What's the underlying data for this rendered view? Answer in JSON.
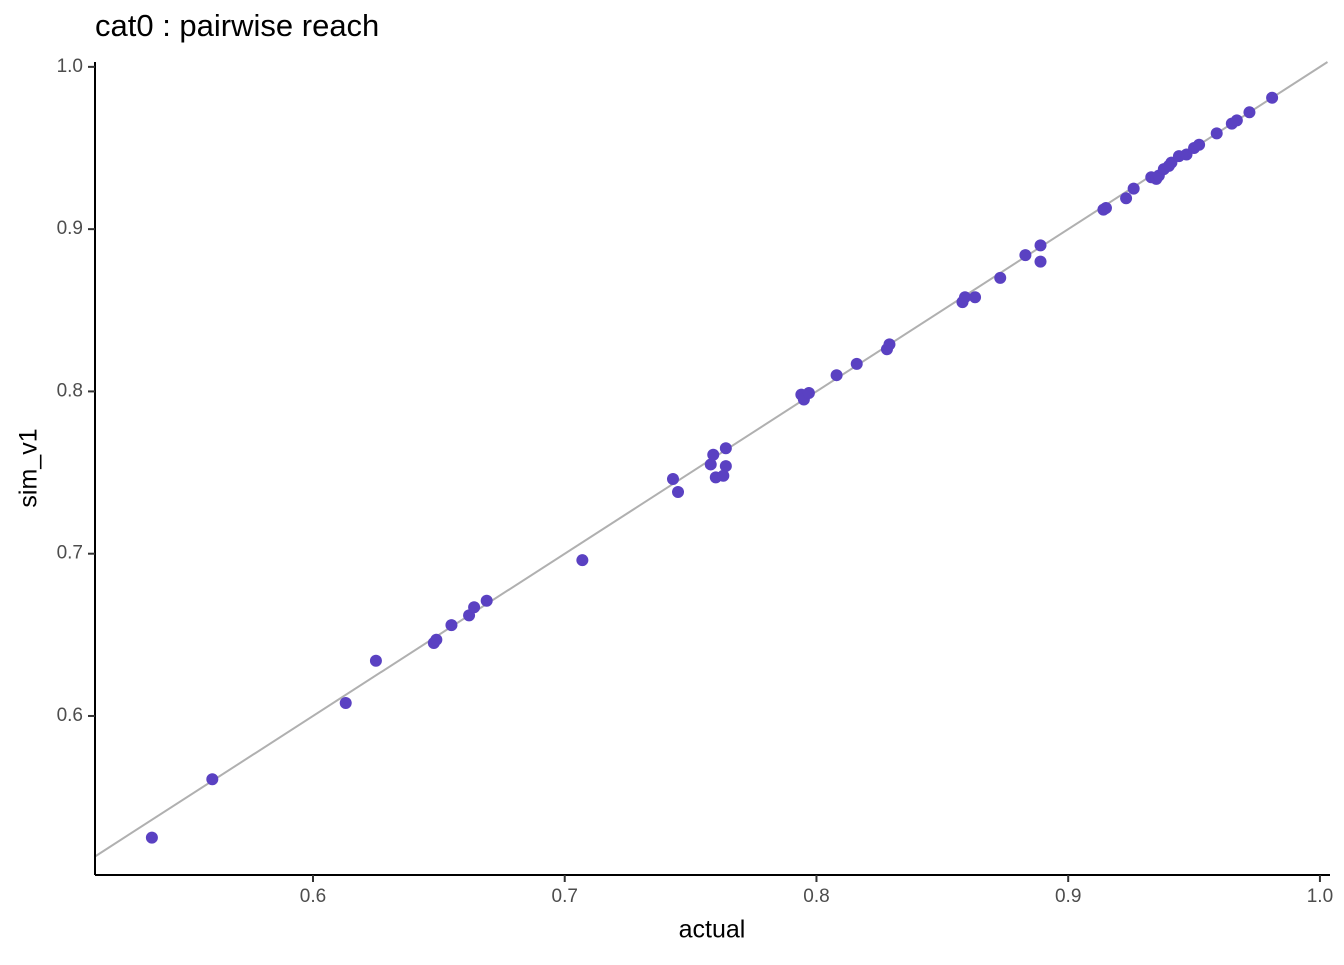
{
  "chart_data": {
    "type": "scatter",
    "title": "cat0 : pairwise reach",
    "x_label": "actual",
    "y_label": "sim_v1",
    "color": "#5a41c2",
    "identity_line": true,
    "identity_color": "#b0b0b0",
    "xlim": [
      0.5134,
      1.004
    ],
    "ylim": [
      0.502,
      1.003
    ],
    "xticks": [
      0.6,
      0.7,
      0.8,
      0.9,
      {
        "value": 1.0,
        "label": "1.0"
      }
    ],
    "yticks": [
      0.6,
      0.7,
      0.8,
      0.9,
      {
        "value": 1.0,
        "label": "1.0"
      }
    ],
    "x": [
      0.536,
      0.56,
      0.613,
      0.625,
      0.648,
      0.649,
      0.655,
      0.662,
      0.664,
      0.669,
      0.707,
      0.743,
      0.745,
      0.758,
      0.759,
      0.76,
      0.763,
      0.764,
      0.764,
      0.794,
      0.795,
      0.797,
      0.808,
      0.816,
      0.828,
      0.829,
      0.858,
      0.859,
      0.863,
      0.873,
      0.883,
      0.889,
      0.889,
      0.914,
      0.915,
      0.923,
      0.926,
      0.933,
      0.935,
      0.936,
      0.938,
      0.94,
      0.941,
      0.944,
      0.947,
      0.95,
      0.952,
      0.959,
      0.965,
      0.967,
      0.972,
      0.981
    ],
    "values": [
      0.525,
      0.561,
      0.608,
      0.634,
      0.645,
      0.647,
      0.656,
      0.662,
      0.667,
      0.671,
      0.696,
      0.746,
      0.738,
      0.755,
      0.761,
      0.747,
      0.748,
      0.754,
      0.765,
      0.798,
      0.795,
      0.799,
      0.81,
      0.817,
      0.826,
      0.829,
      0.855,
      0.858,
      0.858,
      0.87,
      0.884,
      0.88,
      0.89,
      0.912,
      0.913,
      0.919,
      0.925,
      0.932,
      0.931,
      0.933,
      0.937,
      0.939,
      0.941,
      0.945,
      0.946,
      0.95,
      0.952,
      0.959,
      0.965,
      0.967,
      0.972,
      0.981
    ]
  }
}
